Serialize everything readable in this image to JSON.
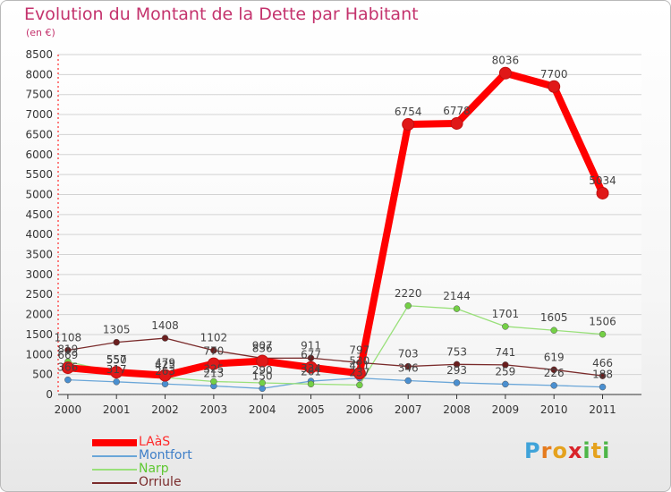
{
  "title": "Evolution du Montant de la Dette par Habitant",
  "subtitle": "(en €)",
  "logo": {
    "letters": [
      "P",
      "r",
      "o",
      "x",
      "i",
      "t",
      "i"
    ],
    "colors": [
      "#3fa3d9",
      "#e57b1e",
      "#e5a21e",
      "#d9242a",
      "#4eb648",
      "#e5a21e",
      "#4eb648"
    ]
  },
  "chart_data": {
    "type": "line",
    "x": [
      "2000",
      "2001",
      "2002",
      "2003",
      "2004",
      "2005",
      "2006",
      "2007",
      "2008",
      "2009",
      "2010",
      "2011"
    ],
    "ylim": [
      0,
      8500
    ],
    "yticks": [
      0,
      500,
      1000,
      1500,
      2000,
      2500,
      3000,
      3500,
      4000,
      4500,
      5000,
      5500,
      6000,
      6500,
      7000,
      7500,
      8000,
      8500
    ],
    "grid": "horizontal",
    "legend_position": "bottom-left",
    "series": [
      {
        "name": "LAàS",
        "color": "#ff0000",
        "marker": "#e01818",
        "values": [
          669,
          557,
          479,
          770,
          836,
          677,
          530,
          6754,
          6778,
          8036,
          7700,
          5034
        ],
        "labels": [
          "669",
          "557",
          "479",
          "770",
          "836",
          "677",
          "530",
          "6754",
          "6778",
          "8036",
          "7700",
          "5034"
        ]
      },
      {
        "name": "Montfort",
        "color": "#6aa6d8",
        "marker": "#4a8fd0",
        "values": [
          366,
          317,
          263,
          213,
          150,
          334,
          411,
          346,
          293,
          259,
          226,
          188
        ],
        "labels": [
          "366",
          "317",
          "263",
          "213",
          "150",
          "334",
          "411",
          "346",
          "293",
          "259",
          "226",
          "188"
        ]
      },
      {
        "name": "Narp",
        "color": "#99e07a",
        "marker": "#74d046",
        "values": [
          819,
          550,
          425,
          325,
          290,
          261,
          237,
          2220,
          2144,
          1701,
          1605,
          1506
        ],
        "labels": [
          "819",
          "550",
          "425",
          "325",
          "290",
          "261",
          "237",
          "2220",
          "2144",
          "1701",
          "1605",
          "1506"
        ]
      },
      {
        "name": "Orriule",
        "color": "#7a2b2b",
        "marker": "#6a1e1e",
        "values": [
          1108,
          1305,
          1408,
          1102,
          907,
          911,
          797,
          703,
          753,
          741,
          619,
          466
        ],
        "labels": [
          "1108",
          "1305",
          "1408",
          "1102",
          "907",
          "911",
          "797",
          "703",
          "753",
          "741",
          "619",
          "466"
        ]
      }
    ]
  }
}
